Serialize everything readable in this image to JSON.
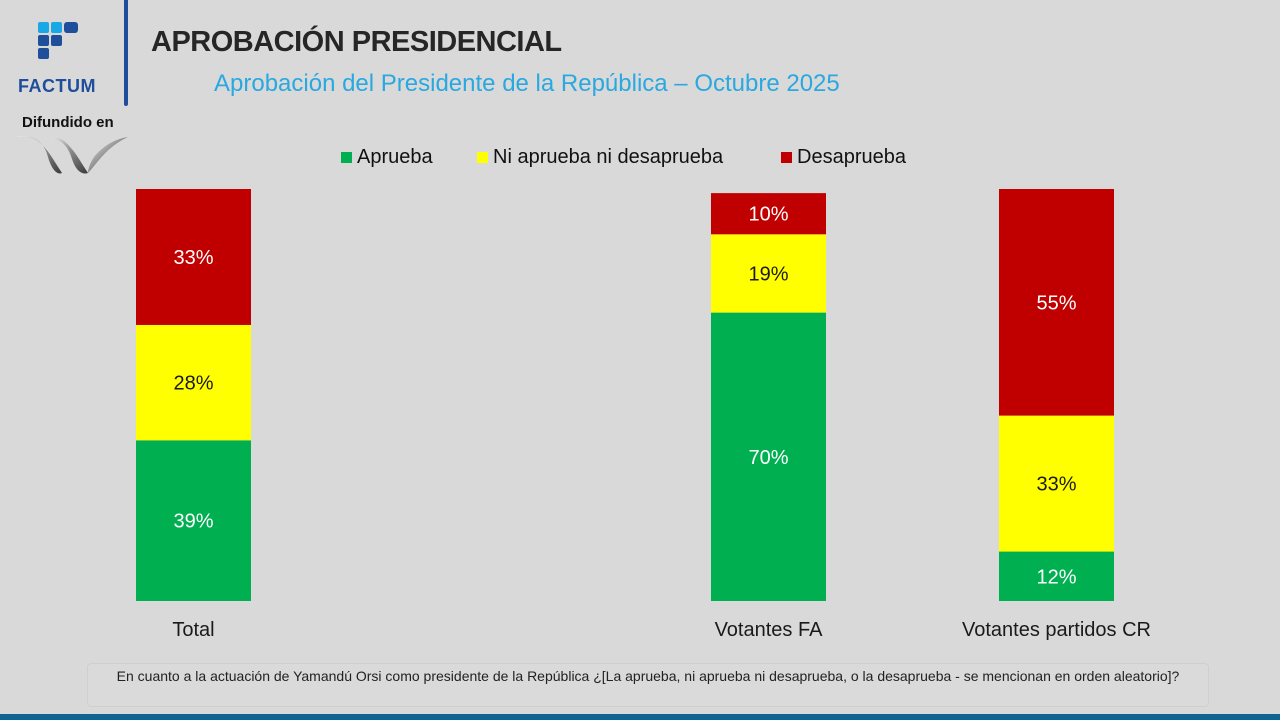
{
  "brand": {
    "name": "FACTUM",
    "distributed_label": "Difundido en",
    "brand_color": "#1f4e9a"
  },
  "header": {
    "title": "APROBACIÓN PRESIDENCIAL",
    "subtitle": "Aprobación del Presidente de la República – Octubre 2025"
  },
  "legend": [
    {
      "label": "Aprueba",
      "color": "#00b050"
    },
    {
      "label": "Ni aprueba ni desaprueba",
      "color": "#ffff00"
    },
    {
      "label": "Desaprueba",
      "color": "#c00000"
    }
  ],
  "chart_data": {
    "type": "bar",
    "stacked": true,
    "title": "Aprobación del Presidente de la República – Octubre 2025",
    "xlabel": "",
    "ylabel": "",
    "ylim": [
      0,
      100
    ],
    "grid": false,
    "legend_position": "top",
    "categories": [
      "Total",
      "Votantes FA",
      "Votantes partidos CR"
    ],
    "series": [
      {
        "name": "Aprueba",
        "color": "#00b050",
        "label_color": "#ffffff",
        "values": [
          39,
          70,
          12
        ]
      },
      {
        "name": "Ni aprueba ni desaprueba",
        "color": "#ffff00",
        "label_color": "#1a1a1a",
        "values": [
          28,
          19,
          33
        ]
      },
      {
        "name": "Desaprueba",
        "color": "#c00000",
        "label_color": "#ffffff",
        "values": [
          33,
          10,
          55
        ]
      }
    ],
    "value_suffix": "%"
  },
  "footer": {
    "question": "En cuanto a la actuación de Yamandú Orsi como presidente de la República ¿[La aprueba, ni aprueba ni desaprueba, o la desaprueba - se mencionan en orden aleatorio]?"
  }
}
